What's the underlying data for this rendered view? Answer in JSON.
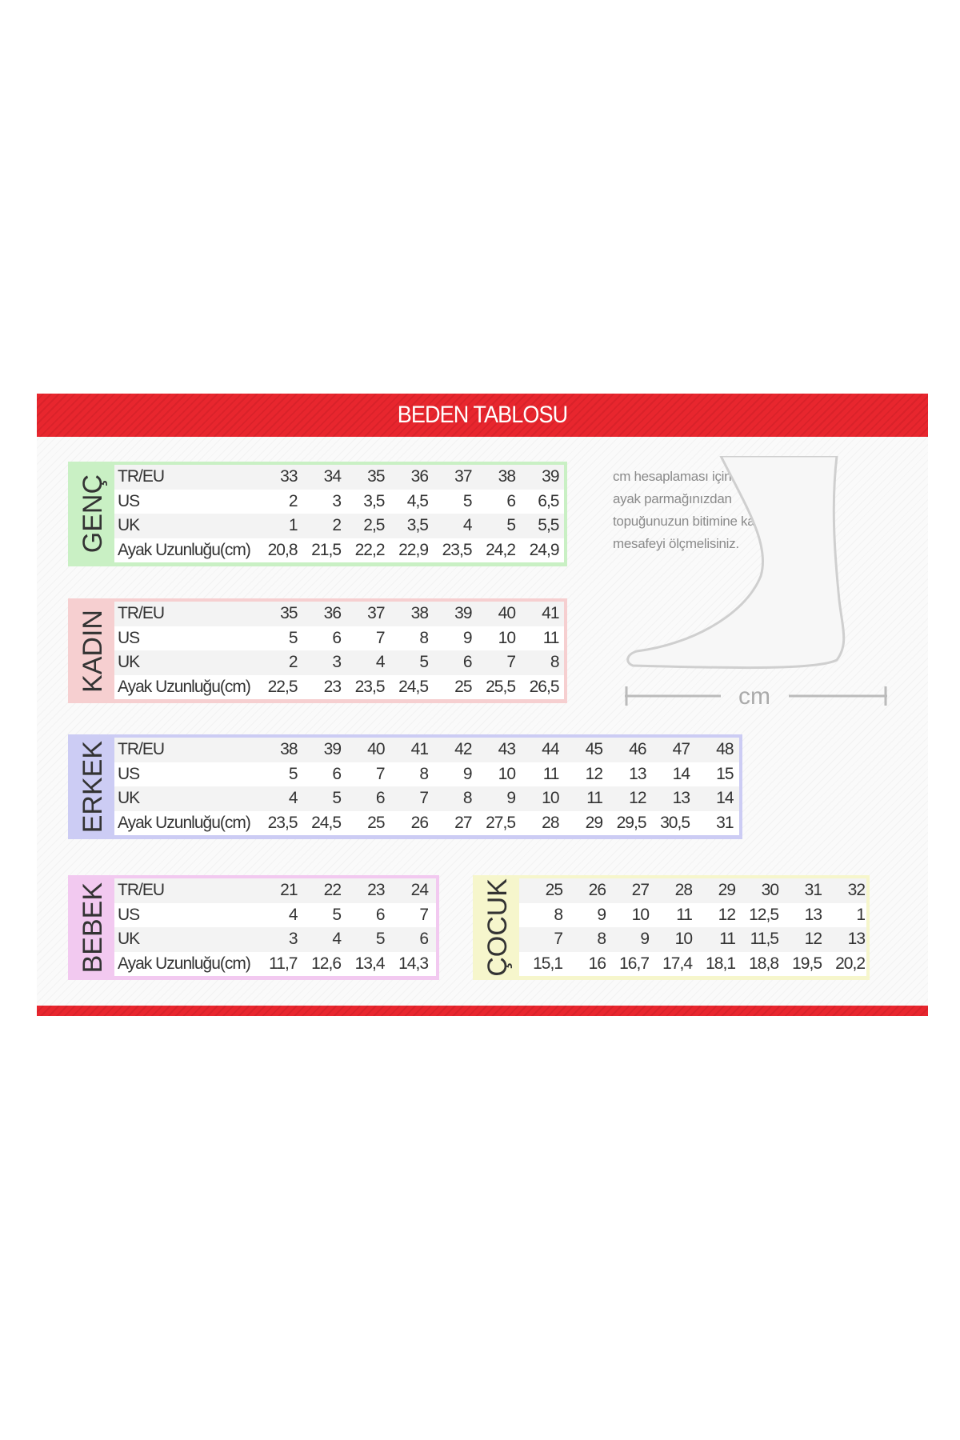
{
  "title": "BEDEN TABLOSU",
  "row_labels": [
    "TR/EU",
    "US",
    "UK",
    "Ayak Uzunluğu(cm)"
  ],
  "colors": {
    "banner": "#e8262e",
    "genc": "#c9f0c4",
    "kadin": "#f6cfd0",
    "erkek": "#ccccf4",
    "bebek": "#f2c9f0",
    "cocuk": "#f6f6cc"
  },
  "note": "cm hesaplaması için en uzun ayak parmağınızdan topuğunuzun bitimine kadar olan mesafeyi ölçmelisiniz.",
  "foot_unit": "cm",
  "tables": {
    "genc": {
      "label": "GENÇ",
      "rows": [
        [
          "33",
          "34",
          "35",
          "36",
          "37",
          "38",
          "39"
        ],
        [
          "2",
          "3",
          "3,5",
          "4,5",
          "5",
          "6",
          "6,5"
        ],
        [
          "1",
          "2",
          "2,5",
          "3,5",
          "4",
          "5",
          "5,5"
        ],
        [
          "20,8",
          "21,5",
          "22,2",
          "22,9",
          "23,5",
          "24,2",
          "24,9"
        ]
      ]
    },
    "kadin": {
      "label": "KADIN",
      "rows": [
        [
          "35",
          "36",
          "37",
          "38",
          "39",
          "40",
          "41"
        ],
        [
          "5",
          "6",
          "7",
          "8",
          "9",
          "10",
          "11"
        ],
        [
          "2",
          "3",
          "4",
          "5",
          "6",
          "7",
          "8"
        ],
        [
          "22,5",
          "23",
          "23,5",
          "24,5",
          "25",
          "25,5",
          "26,5"
        ]
      ]
    },
    "erkek": {
      "label": "ERKEK",
      "rows": [
        [
          "38",
          "39",
          "40",
          "41",
          "42",
          "43",
          "44",
          "45",
          "46",
          "47",
          "48"
        ],
        [
          "5",
          "6",
          "7",
          "8",
          "9",
          "10",
          "11",
          "12",
          "13",
          "14",
          "15"
        ],
        [
          "4",
          "5",
          "6",
          "7",
          "8",
          "9",
          "10",
          "11",
          "12",
          "13",
          "14"
        ],
        [
          "23,5",
          "24,5",
          "25",
          "26",
          "27",
          "27,5",
          "28",
          "29",
          "29,5",
          "30,5",
          "31"
        ]
      ]
    },
    "bebek": {
      "label": "BEBEK",
      "rows": [
        [
          "21",
          "22",
          "23",
          "24"
        ],
        [
          "4",
          "5",
          "6",
          "7"
        ],
        [
          "3",
          "4",
          "5",
          "6"
        ],
        [
          "11,7",
          "12,6",
          "13,4",
          "14,3"
        ]
      ]
    },
    "cocuk": {
      "label": "ÇOCUK",
      "rows": [
        [
          "25",
          "26",
          "27",
          "28",
          "29",
          "30",
          "31",
          "32"
        ],
        [
          "8",
          "9",
          "10",
          "11",
          "12",
          "12,5",
          "13",
          "1"
        ],
        [
          "7",
          "8",
          "9",
          "10",
          "11",
          "11,5",
          "12",
          "13"
        ],
        [
          "15,1",
          "16",
          "16,7",
          "17,4",
          "18,1",
          "18,8",
          "19,5",
          "20,2"
        ]
      ]
    }
  }
}
